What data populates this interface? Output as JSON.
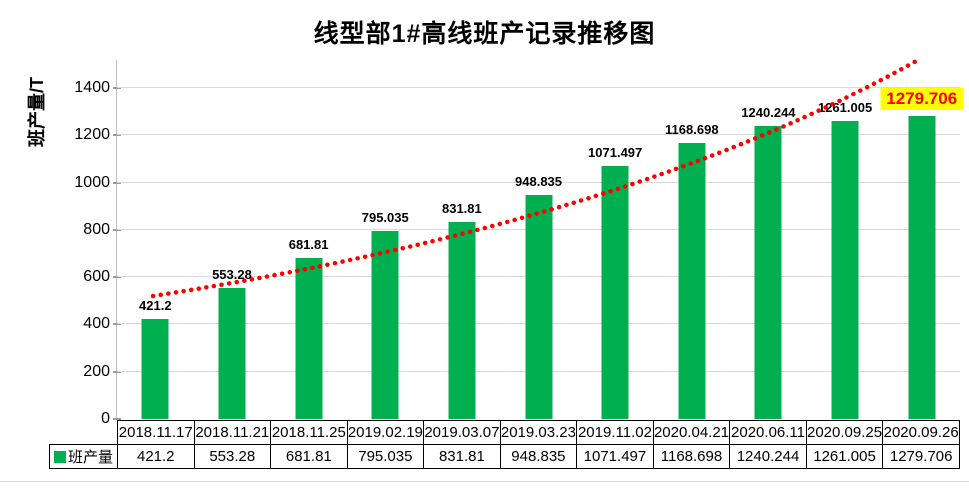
{
  "title": "线型部1#高线班产记录推移图",
  "y_axis": {
    "label": "班产量/T",
    "ticks": [
      "0",
      "200",
      "400",
      "600",
      "800",
      "1000",
      "1200",
      "1400"
    ]
  },
  "legend": {
    "series_label": "班产量"
  },
  "colors": {
    "bar": "#00B050",
    "trendline": "#FF0000",
    "gridline": "#d9d9d9",
    "highlight_bg": "#FFFF00",
    "highlight_text": "#FF0000"
  },
  "chart_data": {
    "type": "bar",
    "title": "线型部1#高线班产记录推移图",
    "xlabel": "",
    "ylabel": "班产量/T",
    "ylim": [
      0,
      1500
    ],
    "grid": true,
    "legend_position": "bottom-left",
    "categories": [
      "2018.11.17",
      "2018.11.21",
      "2018.11.25",
      "2019.02.19",
      "2019.03.07",
      "2019.03.23",
      "2019.11.02",
      "2020.04.21",
      "2020.06.11",
      "2020.09.25",
      "2020.09.26"
    ],
    "series": [
      {
        "name": "班产量",
        "values": [
          421.2,
          553.28,
          681.81,
          795.035,
          831.81,
          948.835,
          1071.497,
          1168.698,
          1240.244,
          1261.005,
          1279.706
        ]
      }
    ],
    "value_labels": [
      "421.2",
      "553.28",
      "681.81",
      "795.035",
      "831.81",
      "948.835",
      "1071.497",
      "1168.698",
      "1240.244",
      "1261.005",
      "1279.706"
    ],
    "highlighted_label_index": 10,
    "trendline": {
      "type": "dotted",
      "color": "#FF0000"
    }
  }
}
